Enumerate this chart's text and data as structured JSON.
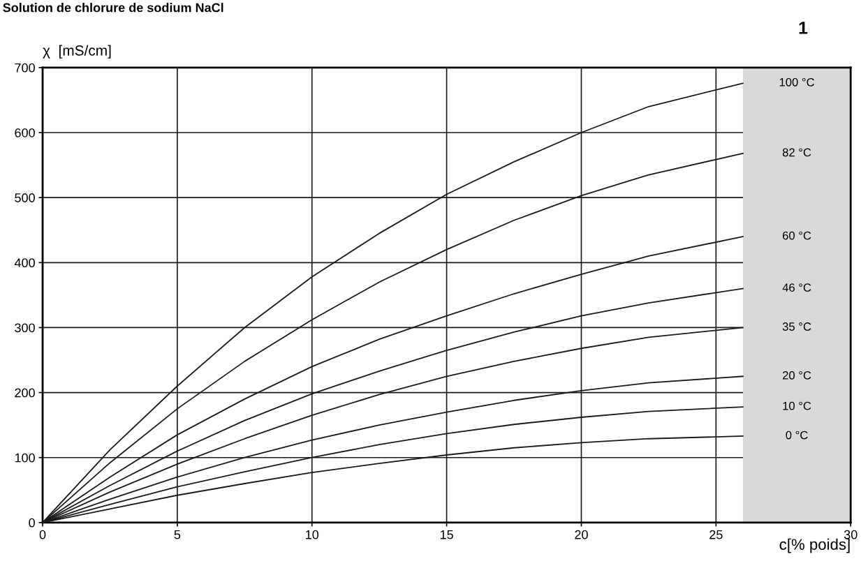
{
  "chart_data": {
    "type": "line",
    "title": "Solution de chlorure de sodium NaCl",
    "xlabel": "c[% poids]",
    "ylabel": "χ  [mS/cm]",
    "x": [
      0,
      2.5,
      5,
      7.5,
      10,
      12.5,
      15,
      17.5,
      20,
      22.5,
      26
    ],
    "series": [
      {
        "name": "100 °C",
        "color": "#1a1a1a",
        "values": [
          0,
          112,
          210,
          300,
          378,
          445,
          505,
          555,
          600,
          640,
          676
        ]
      },
      {
        "name": "82 °C",
        "color": "#1a1a1a",
        "values": [
          0,
          92,
          175,
          248,
          312,
          370,
          420,
          465,
          503,
          535,
          568
        ]
      },
      {
        "name": "60 °C",
        "color": "#1a1a1a",
        "values": [
          0,
          70,
          135,
          190,
          240,
          282,
          318,
          352,
          382,
          410,
          440
        ]
      },
      {
        "name": "46 °C",
        "color": "#1a1a1a",
        "values": [
          0,
          57,
          110,
          157,
          198,
          233,
          265,
          293,
          318,
          338,
          360
        ]
      },
      {
        "name": "35 °C",
        "color": "#1a1a1a",
        "values": [
          0,
          47,
          90,
          129,
          165,
          197,
          225,
          248,
          268,
          285,
          300
        ]
      },
      {
        "name": "20 °C",
        "color": "#1a1a1a",
        "values": [
          0,
          36,
          70,
          100,
          127,
          150,
          170,
          188,
          203,
          215,
          225
        ]
      },
      {
        "name": "10 °C",
        "color": "#1a1a1a",
        "values": [
          0,
          28,
          55,
          78,
          100,
          120,
          137,
          151,
          162,
          171,
          178
        ]
      },
      {
        "name": "0 °C",
        "color": "#1a1a1a",
        "values": [
          0,
          21,
          42,
          60,
          77,
          91,
          104,
          115,
          123,
          129,
          133
        ]
      }
    ],
    "xlim": [
      0,
      30
    ],
    "ylim": [
      0,
      700
    ],
    "xticks": [
      0,
      5,
      10,
      15,
      20,
      25,
      30
    ],
    "yticks": [
      0,
      100,
      200,
      300,
      400,
      500,
      600,
      700
    ],
    "grid": true,
    "line_style": "solid",
    "marker": "none",
    "bands": [
      {
        "axis": "x",
        "from": 26,
        "to": 30,
        "color": "#d9d9d9"
      }
    ],
    "annotations": [
      "1"
    ]
  }
}
